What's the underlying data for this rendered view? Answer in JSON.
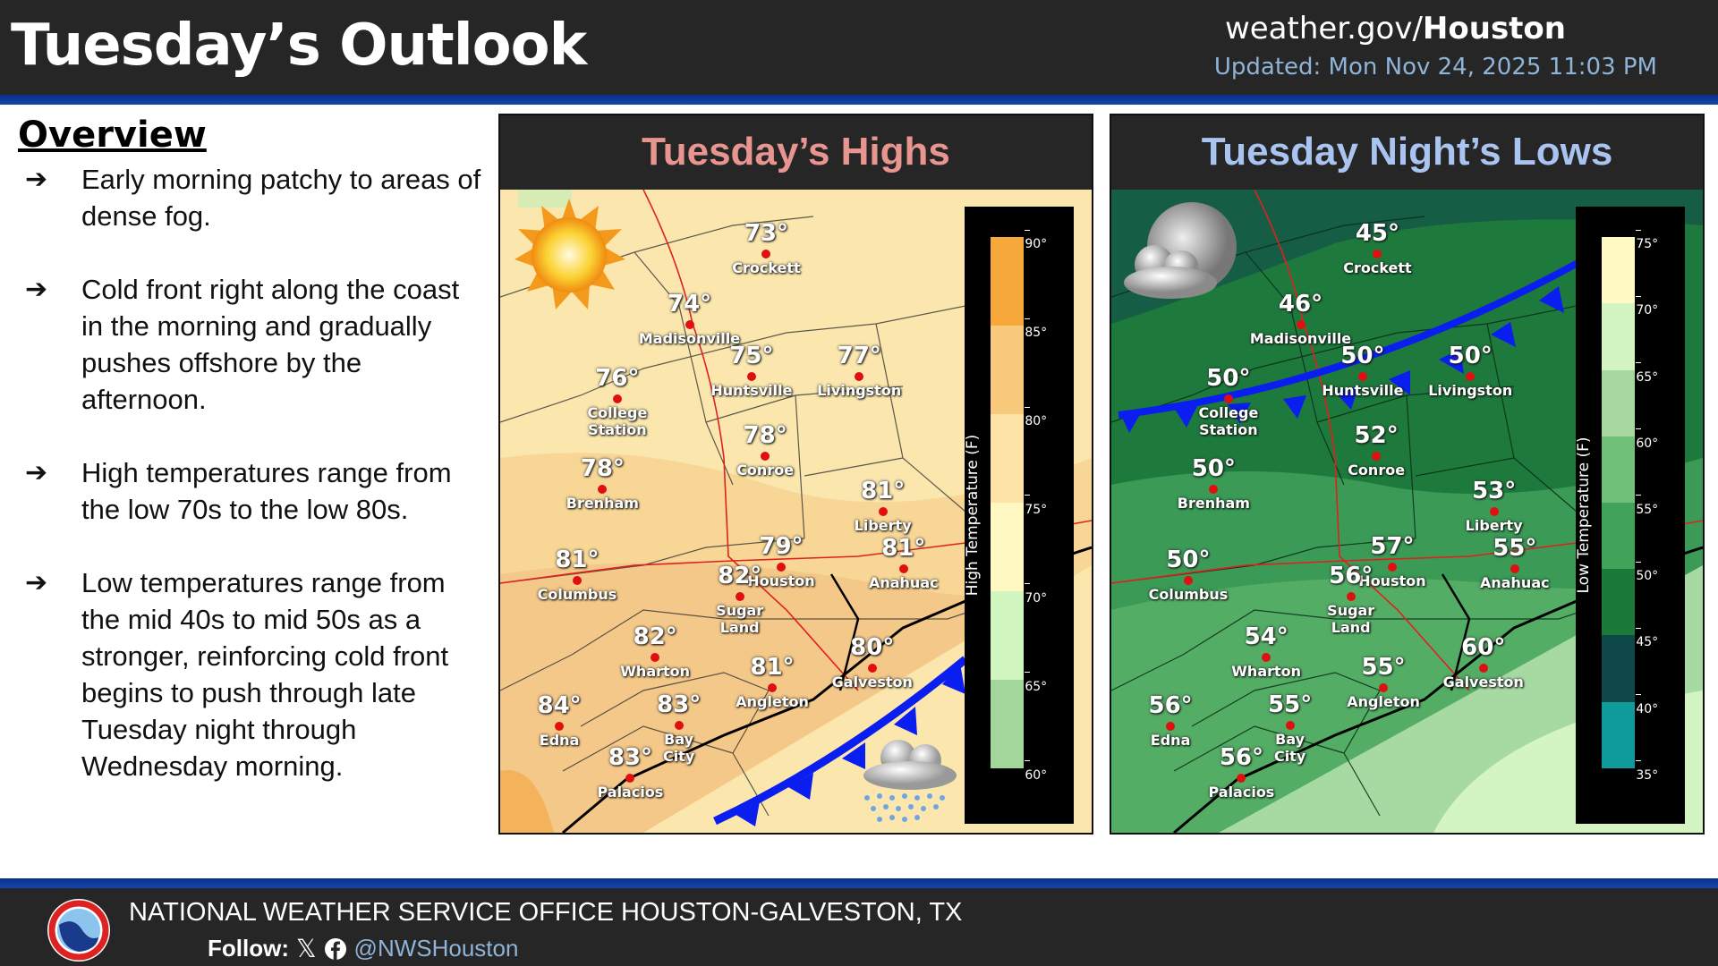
{
  "header": {
    "title": "Tuesday’s Outlook",
    "site_prefix": "weather.gov/",
    "site_bold": "Houston",
    "updated": "Updated: Mon Nov 24, 2025 11:03 PM"
  },
  "overview": {
    "title": "Overview",
    "bullets": [
      "Early morning patchy to areas of dense fog.",
      "Cold front right along the coast in the morning and gradually pushes offshore by the afternoon.",
      "High temperatures range from the low 70s to the low 80s.",
      "Low temperatures range from the mid 40s to mid 50s  as a stronger, reinforcing cold front begins to push through late Tuesday night through Wednesday morning."
    ]
  },
  "highs": {
    "title": "Tuesday’s Highs",
    "title_color": "#e8958f",
    "icon": "sun-icon",
    "legend": {
      "label": "High Temperature (F)",
      "ticks": [
        "90°",
        "85°",
        "80°",
        "75°",
        "70°",
        "65°",
        "60°"
      ],
      "colors": [
        "#f6a83a",
        "#f9c97c",
        "#fde4a6",
        "#fff8c2",
        "#d2f6c0",
        "#a2d69a"
      ]
    },
    "cities": [
      {
        "name": "Crockett",
        "temp": "73°"
      },
      {
        "name": "Madisonville",
        "temp": "74°"
      },
      {
        "name": "Huntsville",
        "temp": "75°"
      },
      {
        "name": "Livingston",
        "temp": "77°"
      },
      {
        "name": "College Station",
        "temp": "76°"
      },
      {
        "name": "Conroe",
        "temp": "78°"
      },
      {
        "name": "Brenham",
        "temp": "78°"
      },
      {
        "name": "Liberty",
        "temp": "81°"
      },
      {
        "name": "Houston",
        "temp": "79°"
      },
      {
        "name": "Anahuac",
        "temp": "81°"
      },
      {
        "name": "Columbus",
        "temp": "81°"
      },
      {
        "name": "Sugar Land",
        "temp": "82°"
      },
      {
        "name": "Wharton",
        "temp": "82°"
      },
      {
        "name": "Angleton",
        "temp": "81°"
      },
      {
        "name": "Galveston",
        "temp": "80°"
      },
      {
        "name": "Edna",
        "temp": "84°"
      },
      {
        "name": "Bay City",
        "temp": "83°"
      },
      {
        "name": "Palacios",
        "temp": "83°"
      }
    ]
  },
  "lows": {
    "title": "Tuesday Night’s Lows",
    "title_color": "#a9c4f0",
    "icon": "moon-cloud-icon",
    "legend": {
      "label": "Low Temperature (F)",
      "ticks": [
        "75°",
        "70°",
        "65°",
        "60°",
        "55°",
        "50°",
        "45°",
        "40°",
        "35°"
      ],
      "colors": [
        "#fffac2",
        "#d3f5c2",
        "#a6d8a0",
        "#70c07a",
        "#3fa35a",
        "#1b7a3a",
        "#0e4848",
        "#0f9a9c"
      ]
    },
    "cities": [
      {
        "name": "Crockett",
        "temp": "45°"
      },
      {
        "name": "Madisonville",
        "temp": "46°"
      },
      {
        "name": "Huntsville",
        "temp": "50°"
      },
      {
        "name": "Livingston",
        "temp": "50°"
      },
      {
        "name": "College Station",
        "temp": "50°"
      },
      {
        "name": "Conroe",
        "temp": "52°"
      },
      {
        "name": "Brenham",
        "temp": "50°"
      },
      {
        "name": "Liberty",
        "temp": "53°"
      },
      {
        "name": "Houston",
        "temp": "57°"
      },
      {
        "name": "Anahuac",
        "temp": "55°"
      },
      {
        "name": "Columbus",
        "temp": "50°"
      },
      {
        "name": "Sugar Land",
        "temp": "56°"
      },
      {
        "name": "Wharton",
        "temp": "54°"
      },
      {
        "name": "Angleton",
        "temp": "55°"
      },
      {
        "name": "Galveston",
        "temp": "60°"
      },
      {
        "name": "Edna",
        "temp": "56°"
      },
      {
        "name": "Bay City",
        "temp": "55°"
      },
      {
        "name": "Palacios",
        "temp": "56°"
      }
    ]
  },
  "footer": {
    "office": "NATIONAL WEATHER SERVICE OFFICE HOUSTON-GALVESTON, TX",
    "follow_label": "Follow:",
    "handle": "@NWSHouston",
    "accent": "#1446b0"
  }
}
